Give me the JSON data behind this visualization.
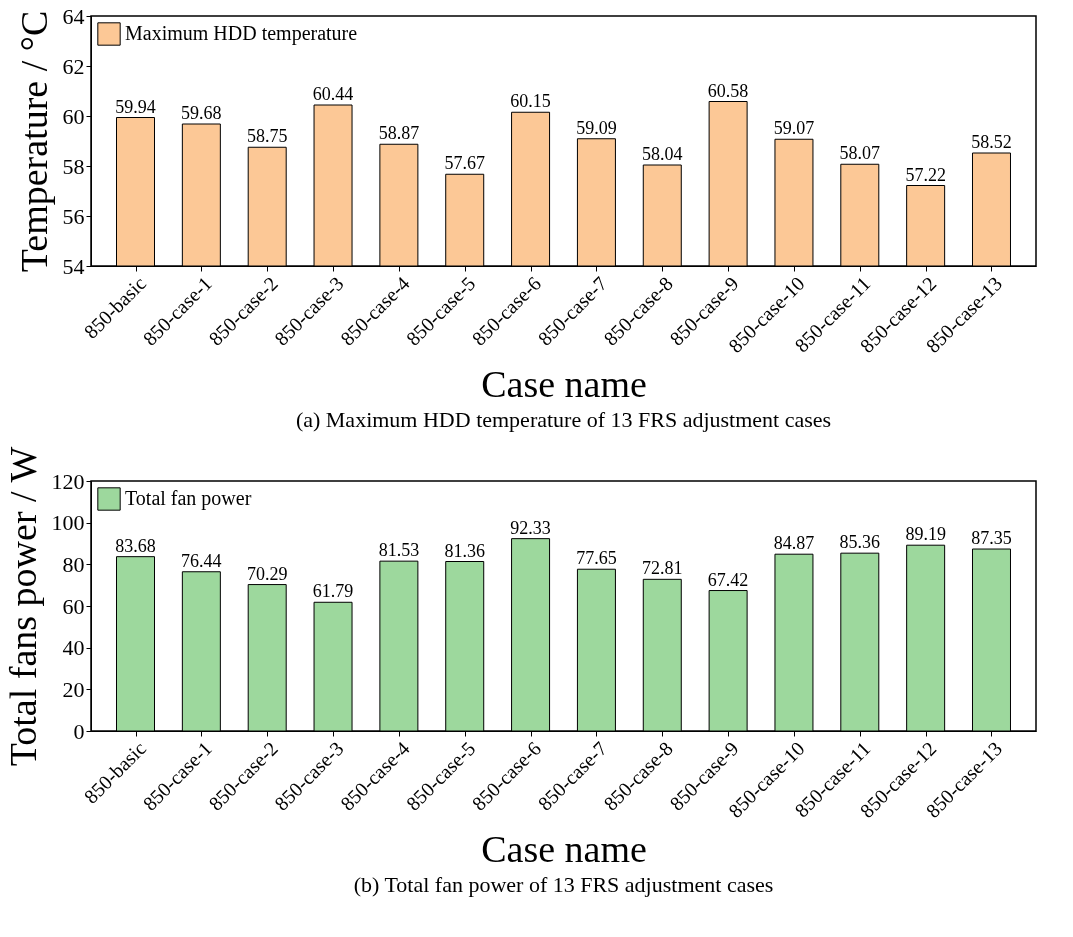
{
  "chart_data": [
    {
      "type": "bar",
      "xlabel": "Case name",
      "ylabel": "Temperature / °C",
      "annotations": [
        "(a) Maximum HDD temperature of 13 FRS adjustment cases"
      ],
      "categories": [
        "850-basic",
        "850-case-1",
        "850-case-2",
        "850-case-3",
        "850-case-4",
        "850-case-5",
        "850-case-6",
        "850-case-7",
        "850-case-8",
        "850-case-9",
        "850-case-10",
        "850-case-11",
        "850-case-12",
        "850-case-13"
      ],
      "series": [
        {
          "name": "Maximum HDD temperature",
          "color": "#fcc896",
          "values": [
            59.94,
            59.68,
            58.75,
            60.44,
            58.87,
            57.67,
            60.15,
            59.09,
            58.04,
            60.58,
            59.07,
            58.07,
            57.22,
            58.52
          ]
        }
      ],
      "ylim": [
        54,
        64
      ],
      "yticks": [
        54,
        56,
        58,
        60,
        62,
        64
      ],
      "data_labels": true,
      "legend": "top left",
      "grid": false
    },
    {
      "type": "bar",
      "xlabel": "Case name",
      "ylabel": "Total fans power / W",
      "annotations": [
        "(b) Total fan power of 13 FRS adjustment cases"
      ],
      "categories": [
        "850-basic",
        "850-case-1",
        "850-case-2",
        "850-case-3",
        "850-case-4",
        "850-case-5",
        "850-case-6",
        "850-case-7",
        "850-case-8",
        "850-case-9",
        "850-case-10",
        "850-case-11",
        "850-case-12",
        "850-case-13"
      ],
      "series": [
        {
          "name": "Total fan power",
          "color": "#9dd89d",
          "values": [
            83.68,
            76.44,
            70.29,
            61.79,
            81.53,
            81.36,
            92.33,
            77.65,
            72.81,
            67.42,
            84.87,
            85.36,
            89.19,
            87.35
          ]
        }
      ],
      "ylim": [
        0,
        120
      ],
      "yticks": [
        0,
        20,
        40,
        60,
        80,
        100,
        120
      ],
      "data_labels": true,
      "legend": "top left",
      "grid": false
    }
  ]
}
